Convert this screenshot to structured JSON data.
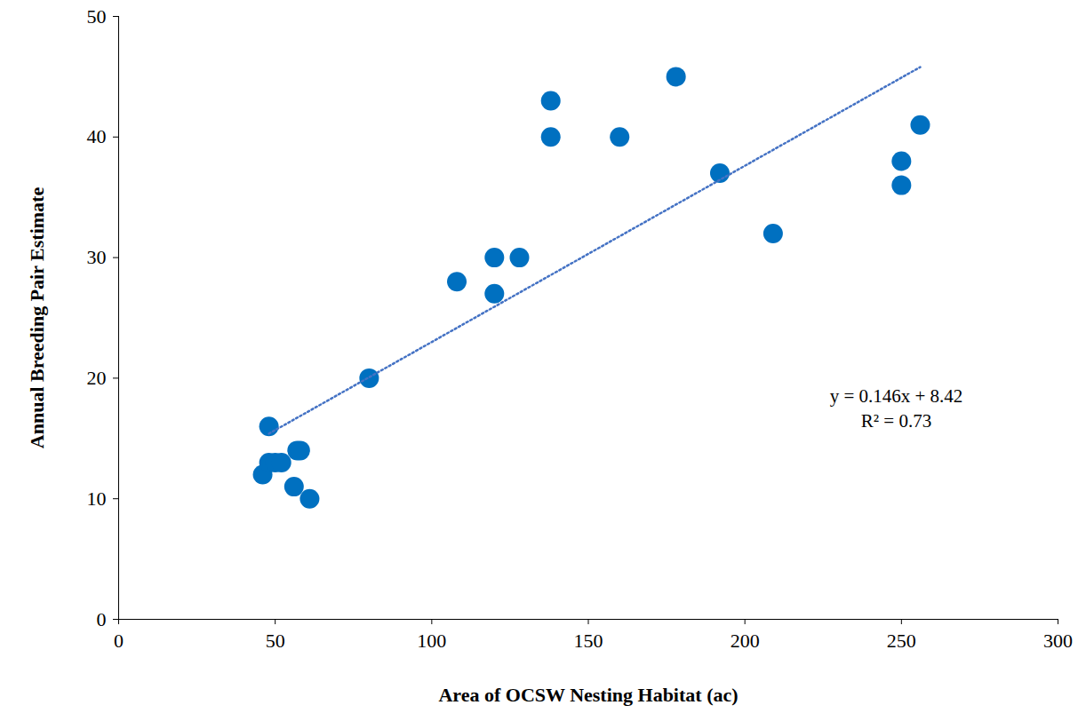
{
  "chart_data": {
    "type": "scatter",
    "xlabel": "Area of OCSW Nesting Habitat (ac)",
    "ylabel": "Annual Breeding Pair Estimate",
    "xlim": [
      0,
      300
    ],
    "xticks": [
      0,
      50,
      100,
      150,
      200,
      250,
      300
    ],
    "ylim": [
      0,
      50
    ],
    "yticks": [
      0,
      10,
      20,
      30,
      40,
      50
    ],
    "grid": false,
    "annotations": [
      "y = 0.146x + 8.42",
      "R² = 0.73"
    ],
    "series": [
      {
        "type": "scatter",
        "marker": "circle",
        "color": "#0070c0",
        "x": [
          46,
          48,
          48,
          50,
          52,
          56,
          57,
          58,
          61,
          80,
          108,
          120,
          120,
          128,
          138,
          138,
          160,
          178,
          192,
          209,
          250,
          250,
          256
        ],
        "values": [
          12,
          16,
          13,
          13,
          13,
          11,
          14,
          14,
          10,
          20,
          28,
          30,
          27,
          30,
          43,
          40,
          40,
          45,
          37,
          32,
          38,
          36,
          41
        ]
      },
      {
        "type": "line",
        "line_style": "dotted",
        "color": "#4472c4",
        "x": [
          48,
          256
        ],
        "values": [
          15.4,
          45.8
        ]
      }
    ]
  }
}
